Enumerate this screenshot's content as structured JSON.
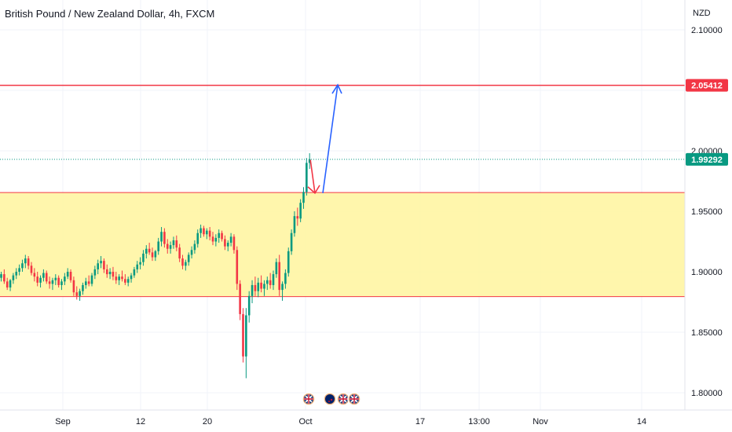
{
  "header": {
    "symbol_title": "British Pound / New Zealand Dollar, 4h, FXCM"
  },
  "chart_data": {
    "type": "candlestick",
    "currency_label": "NZD",
    "y_ticks": [
      "2.10000",
      "2.00000",
      "1.95000",
      "1.90000",
      "1.85000",
      "1.80000"
    ],
    "y_tick_values": [
      2.1,
      2.0,
      1.95,
      1.9,
      1.85,
      1.8
    ],
    "hidden_tick_value": 2.05,
    "x_ticks": [
      "Sep",
      "12",
      "20",
      "Oct",
      "17",
      "13:00",
      "Nov",
      "14"
    ],
    "ylim": [
      1.785,
      2.125
    ],
    "resistance_level": {
      "value": 2.05412,
      "label": "2.05412",
      "color": "#f23645"
    },
    "current_price": {
      "value": 1.99292,
      "label": "1.99292",
      "color": "#089981"
    },
    "support_zone": {
      "top": 1.9655,
      "bottom": 1.8795,
      "fill": "#fff59d",
      "border": "#f23645"
    },
    "projection": {
      "pullback": {
        "from": 1.9925,
        "to": 1.965,
        "color": "#f23645"
      },
      "target": {
        "from": 1.965,
        "to": 2.0545,
        "color": "#2962ff"
      }
    },
    "candles": [
      [
        1.895,
        1.9,
        1.892,
        1.898
      ],
      [
        1.898,
        1.902,
        1.89,
        1.892
      ],
      [
        1.892,
        1.895,
        1.885,
        1.887
      ],
      [
        1.887,
        1.894,
        1.884,
        1.893
      ],
      [
        1.893,
        1.899,
        1.89,
        1.897
      ],
      [
        1.897,
        1.903,
        1.894,
        1.9
      ],
      [
        1.9,
        1.906,
        1.897,
        1.903
      ],
      [
        1.903,
        1.91,
        1.9,
        1.907
      ],
      [
        1.907,
        1.914,
        1.903,
        1.911
      ],
      [
        1.911,
        1.913,
        1.902,
        1.905
      ],
      [
        1.905,
        1.908,
        1.897,
        1.899
      ],
      [
        1.899,
        1.903,
        1.892,
        1.896
      ],
      [
        1.896,
        1.9,
        1.888,
        1.891
      ],
      [
        1.891,
        1.897,
        1.887,
        1.895
      ],
      [
        1.895,
        1.902,
        1.892,
        1.899
      ],
      [
        1.899,
        1.901,
        1.89,
        1.892
      ],
      [
        1.892,
        1.896,
        1.886,
        1.89
      ],
      [
        1.89,
        1.895,
        1.885,
        1.893
      ],
      [
        1.893,
        1.898,
        1.889,
        1.895
      ],
      [
        1.895,
        1.897,
        1.887,
        1.889
      ],
      [
        1.889,
        1.894,
        1.885,
        1.892
      ],
      [
        1.892,
        1.899,
        1.889,
        1.896
      ],
      [
        1.896,
        1.903,
        1.894,
        1.9
      ],
      [
        1.9,
        1.902,
        1.891,
        1.893
      ],
      [
        1.893,
        1.896,
        1.88,
        1.883
      ],
      [
        1.883,
        1.888,
        1.877,
        1.88
      ],
      [
        1.88,
        1.886,
        1.876,
        1.884
      ],
      [
        1.884,
        1.891,
        1.881,
        1.889
      ],
      [
        1.889,
        1.895,
        1.886,
        1.892
      ],
      [
        1.892,
        1.897,
        1.888,
        1.89
      ],
      [
        1.89,
        1.899,
        1.888,
        1.897
      ],
      [
        1.897,
        1.905,
        1.894,
        1.902
      ],
      [
        1.902,
        1.91,
        1.898,
        1.907
      ],
      [
        1.907,
        1.913,
        1.903,
        1.909
      ],
      [
        1.909,
        1.911,
        1.899,
        1.902
      ],
      [
        1.902,
        1.906,
        1.895,
        1.898
      ],
      [
        1.898,
        1.903,
        1.894,
        1.9
      ],
      [
        1.9,
        1.904,
        1.893,
        1.896
      ],
      [
        1.896,
        1.9,
        1.89,
        1.893
      ],
      [
        1.893,
        1.898,
        1.889,
        1.896
      ],
      [
        1.896,
        1.901,
        1.892,
        1.894
      ],
      [
        1.894,
        1.898,
        1.889,
        1.891
      ],
      [
        1.891,
        1.896,
        1.888,
        1.894
      ],
      [
        1.894,
        1.899,
        1.891,
        1.897
      ],
      [
        1.897,
        1.904,
        1.895,
        1.902
      ],
      [
        1.902,
        1.909,
        1.899,
        1.906
      ],
      [
        1.906,
        1.912,
        1.902,
        1.908
      ],
      [
        1.908,
        1.918,
        1.905,
        1.915
      ],
      [
        1.915,
        1.922,
        1.911,
        1.919
      ],
      [
        1.919,
        1.924,
        1.914,
        1.916
      ],
      [
        1.916,
        1.92,
        1.909,
        1.912
      ],
      [
        1.912,
        1.918,
        1.909,
        1.917
      ],
      [
        1.917,
        1.928,
        1.914,
        1.925
      ],
      [
        1.925,
        1.937,
        1.921,
        1.933
      ],
      [
        1.933,
        1.936,
        1.92,
        1.923
      ],
      [
        1.923,
        1.927,
        1.915,
        1.919
      ],
      [
        1.919,
        1.925,
        1.915,
        1.922
      ],
      [
        1.922,
        1.929,
        1.919,
        1.926
      ],
      [
        1.926,
        1.93,
        1.917,
        1.92
      ],
      [
        1.92,
        1.923,
        1.908,
        1.911
      ],
      [
        1.911,
        1.914,
        1.902,
        1.905
      ],
      [
        1.905,
        1.91,
        1.901,
        1.908
      ],
      [
        1.908,
        1.916,
        1.905,
        1.914
      ],
      [
        1.914,
        1.921,
        1.911,
        1.918
      ],
      [
        1.918,
        1.926,
        1.915,
        1.923
      ],
      [
        1.923,
        1.935,
        1.92,
        1.932
      ],
      [
        1.932,
        1.939,
        1.928,
        1.936
      ],
      [
        1.936,
        1.938,
        1.929,
        1.931
      ],
      [
        1.931,
        1.936,
        1.927,
        1.934
      ],
      [
        1.934,
        1.937,
        1.926,
        1.929
      ],
      [
        1.929,
        1.933,
        1.922,
        1.925
      ],
      [
        1.925,
        1.931,
        1.921,
        1.928
      ],
      [
        1.928,
        1.935,
        1.924,
        1.932
      ],
      [
        1.932,
        1.934,
        1.925,
        1.927
      ],
      [
        1.927,
        1.93,
        1.918,
        1.921
      ],
      [
        1.921,
        1.926,
        1.917,
        1.924
      ],
      [
        1.924,
        1.932,
        1.921,
        1.929
      ],
      [
        1.929,
        1.931,
        1.915,
        1.918
      ],
      [
        1.918,
        1.921,
        1.885,
        1.89
      ],
      [
        1.89,
        1.893,
        1.86,
        1.865
      ],
      [
        1.865,
        1.87,
        1.825,
        1.83
      ],
      [
        1.83,
        1.87,
        1.812,
        1.864
      ],
      [
        1.864,
        1.884,
        1.858,
        1.88
      ],
      [
        1.88,
        1.893,
        1.874,
        1.889
      ],
      [
        1.889,
        1.896,
        1.88,
        1.884
      ],
      [
        1.884,
        1.895,
        1.879,
        1.891
      ],
      [
        1.891,
        1.897,
        1.883,
        1.886
      ],
      [
        1.886,
        1.893,
        1.88,
        1.89
      ],
      [
        1.89,
        1.896,
        1.885,
        1.893
      ],
      [
        1.893,
        1.899,
        1.886,
        1.889
      ],
      [
        1.889,
        1.901,
        1.885,
        1.898
      ],
      [
        1.898,
        1.911,
        1.895,
        1.908
      ],
      [
        1.908,
        1.914,
        1.88,
        1.885
      ],
      [
        1.885,
        1.892,
        1.876,
        1.89
      ],
      [
        1.89,
        1.902,
        1.886,
        1.899
      ],
      [
        1.899,
        1.92,
        1.896,
        1.917
      ],
      [
        1.917,
        1.935,
        1.914,
        1.932
      ],
      [
        1.932,
        1.95,
        1.929,
        1.946
      ],
      [
        1.946,
        1.953,
        1.938,
        1.944
      ],
      [
        1.944,
        1.96,
        1.941,
        1.957
      ],
      [
        1.957,
        1.97,
        1.952,
        1.966
      ],
      [
        1.966,
        1.994,
        1.963,
        1.99
      ],
      [
        1.99,
        1.998,
        1.985,
        1.993
      ]
    ]
  }
}
